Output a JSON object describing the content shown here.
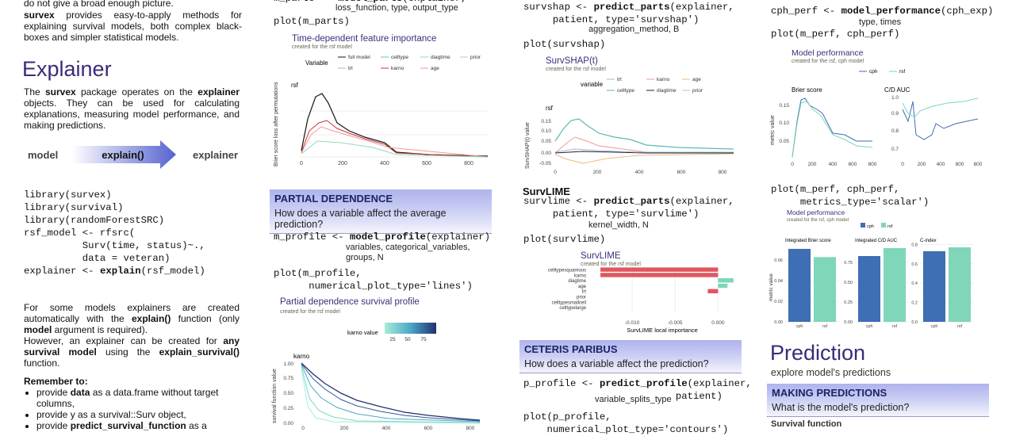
{
  "col1": {
    "intro": [
      "do not give a broad enough picture."
    ],
    "para0": [
      {
        "text": "survex",
        "bold": true
      },
      " provides easy-to-apply methods for explaining survival models, both complex black-boxes and simpler statistical models."
    ],
    "heading": "Explainer",
    "para1": [
      "The ",
      {
        "text": "survex",
        "bold": true
      },
      " package operates on the ",
      {
        "text": "explainer",
        "bold": true
      },
      " objects. They can be used for calculating explanations, measuring model performance, and making predictions."
    ],
    "flow": {
      "from": "model",
      "call": "explain()",
      "to": "explainer"
    },
    "code": [
      [
        "library(survex)"
      ],
      [
        "library(survival)"
      ],
      [
        "library(randomForestSRC)"
      ],
      [
        "rsf_model <- rfsrc("
      ],
      [
        "          Surv(time, status)~.,"
      ],
      [
        "          data = veteran)"
      ],
      [
        "explainer <- ",
        {
          "text": "explain",
          "bold": true
        },
        "(rsf_model)"
      ]
    ],
    "para2": [
      "For some models explainers are created automatically with the ",
      {
        "text": "explain()",
        "bold": true
      },
      " function (only ",
      {
        "text": "model",
        "bold": true
      },
      " argument is required)."
    ],
    "para3": [
      "However, an explainer can be created for ",
      {
        "text": "any survival model",
        "bold": true
      },
      " using the ",
      {
        "text": "explain_survival()",
        "bold": true
      },
      " function."
    ],
    "remember": {
      "title": "Remember to:",
      "items": [
        [
          "provide ",
          {
            "text": "data",
            "bold": true
          },
          " as a data.frame without target columns,"
        ],
        [
          "provide y as a survival::Surv object,"
        ],
        [
          "provide ",
          {
            "text": "predict_survival_function",
            "bold": true
          },
          " as a"
        ]
      ]
    }
  },
  "col2": {
    "code_top": [
      [
        "m_parts <- ",
        {
          "text": "model_parts",
          "bold": true
        },
        "(explainer,"
      ]
    ],
    "args_top": "loss_function, type, output_type",
    "code_top2": [
      [
        "plot(m_parts)"
      ]
    ],
    "plot1": {
      "title": "Time-dependent feature importance",
      "subtitle": "created for the rsf model",
      "legend_title": "Variable",
      "legend": [
        "full model",
        "celltype",
        "diagtime",
        "prior",
        "trt",
        "karno",
        "age"
      ],
      "panel": "rsf",
      "ylabel": "Brier score loss after permutations",
      "xticks": [
        0,
        200,
        400,
        600,
        800
      ]
    },
    "section": {
      "title": "PARTIAL DEPENDENCE",
      "question": "How does a variable affect the average prediction?"
    },
    "code1": [
      [
        "m_profile <- ",
        {
          "text": "model_profile",
          "bold": true
        },
        "(explainer)"
      ]
    ],
    "args1": "variables, categorical_variables, groups, N",
    "code2": [
      [
        "plot(m_profile,"
      ],
      [
        "      numerical_plot_type='lines')"
      ]
    ],
    "plot2": {
      "title": "Partial dependence survival profile",
      "subtitle": "created for the rsf model",
      "legend_title": "karno value",
      "legend_ticks": [
        25,
        50,
        75
      ],
      "panel": "karno",
      "ylabel": "survival function value",
      "yticks": [
        "1.00",
        "0.75",
        "0.50",
        "0.25",
        "0.00"
      ],
      "xticks": [
        0,
        200,
        400,
        600,
        800
      ]
    }
  },
  "col3": {
    "code1": [
      [
        "survshap <- ",
        {
          "text": "predict_parts",
          "bold": true
        },
        "(explainer,"
      ],
      [
        "     patient, type='survshap')"
      ]
    ],
    "args1": "aggregation_method, B",
    "code2": [
      [
        "plot(survshap)"
      ]
    ],
    "plot1": {
      "title": "SurvSHAP(t)",
      "subtitle": "created for the rsf model",
      "legend_title": "variable",
      "legend": [
        "trt",
        "karno",
        "age",
        "celltype",
        "diagtime",
        "prior"
      ],
      "panel": "rsf",
      "ylabel": "SurvSHAP(t) value",
      "yticks": [
        "0.15",
        "0.10",
        "0.05",
        "0.00",
        "-0.05"
      ],
      "xticks": [
        0,
        200,
        400,
        600,
        800
      ]
    },
    "lime_heading": "SurvLIME",
    "code3": [
      [
        "survlime <- ",
        {
          "text": "predict_parts",
          "bold": true
        },
        "(explainer,"
      ],
      [
        "     patient, type='survlime')"
      ]
    ],
    "args3": "kernel_width, N",
    "code4": [
      [
        "plot(survlime)"
      ]
    ],
    "plot2": {
      "title": "SurvLIME",
      "subtitle": "created for the rsf model",
      "categories": [
        "celltypesquamous",
        "karno",
        "diagtime",
        "age",
        "trt",
        "prior",
        "celltypesmallcell",
        "celltypelarge"
      ],
      "values": [
        -0.0137,
        -0.0137,
        0.0018,
        0.0011,
        -0.0012,
        0,
        0,
        0
      ],
      "xlim": [
        -0.015,
        0.002
      ],
      "xticks": [
        {
          "value": -0.01,
          "label": "-0.010"
        },
        {
          "value": -0.005,
          "label": "-0.005"
        },
        {
          "value": 0,
          "label": "0.000"
        }
      ],
      "xlabel": "SurvLIME local importance",
      "negative_color": "#e0575f",
      "positive_color": "#7fd6b8"
    },
    "section": {
      "title": "CETERIS PARIBUS",
      "question": "How does a variable affect the prediction?"
    },
    "code5": [
      [
        "p_profile <- ",
        {
          "text": "predict_profile",
          "bold": true
        },
        "(explainer,"
      ],
      [
        "                          patient)"
      ]
    ],
    "args5": "variable_splits_type",
    "code6": [
      [
        "p_profile,"
      ]
    ],
    "code6full": [
      [
        "plot(p_profile,"
      ],
      [
        "    numerical_plot_type='contours')"
      ]
    ]
  },
  "col4": {
    "code1": [
      [
        "cph_perf <- ",
        {
          "text": "model_performance",
          "bold": true
        },
        "(cph_exp)"
      ]
    ],
    "args1": "type, times",
    "code2": [
      [
        "plot(m_perf, cph_perf)"
      ]
    ],
    "plot1": {
      "title": "Model performance",
      "subtitle": "created for the rsf, cph model",
      "legend": [
        "cph",
        "rsf"
      ],
      "panels": [
        "Brier score",
        "C/D AUC"
      ],
      "ylabel": "metric value",
      "yticks_left": [
        "0.15",
        "0.10",
        "0.05"
      ],
      "yticks_right": [
        "1.0",
        "0.9",
        "0.8",
        "0.7"
      ],
      "xticks": [
        0,
        200,
        400,
        600,
        800
      ]
    },
    "code3": [
      [
        "plot(m_perf, cph_perf,"
      ],
      [
        "     metrics_type='scalar')"
      ]
    ],
    "plot2": {
      "type": "bar",
      "title": "Model performance",
      "subtitle": "created for the rsf, cph model",
      "ylabel": "metric value",
      "categories": [
        "cph",
        "rsf"
      ],
      "colors": [
        "#3e6eb4",
        "#7fd6b8"
      ],
      "facets": [
        {
          "name": "Integrated Brier score",
          "ylim": [
            0,
            0.0725
          ],
          "yticks": [
            {
              "value": 0,
              "label": "0.00"
            },
            0.02,
            0.04,
            0.06
          ],
          "values": [
            0.071,
            0.063
          ]
        },
        {
          "name": "Integrated C/D AUC",
          "ylim": [
            0,
            0.94
          ],
          "yticks": [
            {
              "value": 0,
              "label": "0.00"
            },
            0.25,
            {
              "value": 0.5,
              "label": "0.50"
            },
            0.75
          ],
          "values": [
            0.83,
            0.93
          ]
        },
        {
          "name": "C-index",
          "ylim": [
            0,
            0.77
          ],
          "yticks": [
            {
              "value": 0,
              "label": "0.0"
            },
            0.2,
            0.4,
            0.6,
            0.8
          ],
          "values": [
            0.73,
            0.77
          ]
        }
      ]
    },
    "heading": "Prediction",
    "subheading": "explore model's predictions",
    "section": {
      "title": "MAKING PREDICTIONS",
      "question": "What is the model's prediction?"
    },
    "next": "Survival function"
  }
}
